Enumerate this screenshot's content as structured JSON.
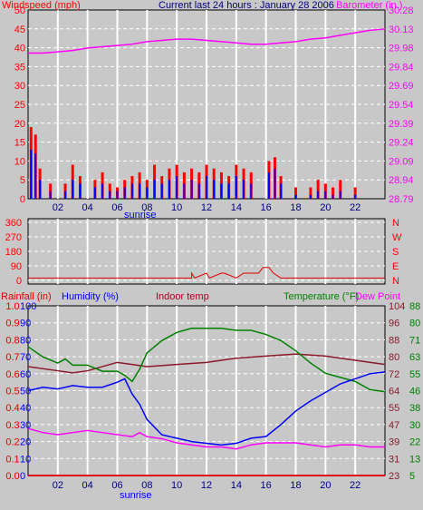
{
  "header": {
    "left_label": "Windspeed (mph)",
    "center_label": "Current last 24 hours : January 28 2006",
    "right_label": "Barometer (in.)"
  },
  "bottom_header": {
    "rainfall_label": "Rainfall (in)",
    "humidity_label": "Humidity (%)",
    "indoor_label": "Indoor temp",
    "temperature_label": "Temperature (°F)",
    "dewpoint_label": "Dew Point"
  },
  "x_axis": {
    "ticks": [
      "02",
      "04",
      "06",
      "08",
      "10",
      "12",
      "14",
      "16",
      "18",
      "20",
      "22"
    ],
    "sunrise_label": "sunrise"
  },
  "colors": {
    "wind_avg": "#0000ff",
    "wind_gust": "#ff0000",
    "barometer": "#ff00ff",
    "direction": "#e00000",
    "humidity": "#0000ff",
    "indoor": "#8b1a2a",
    "temperature": "#008000",
    "dewpoint": "#ff00ff",
    "rainfall": "#e00000"
  },
  "chart_data": [
    {
      "type": "bar",
      "title": "Current last 24 hours : January 28 2006",
      "ylabel": "Windspeed (mph)",
      "y2label": "Barometer (in.)",
      "ylim": [
        0,
        50
      ],
      "y2lim": [
        28.79,
        30.28
      ],
      "y_ticks": [
        0,
        5,
        10,
        15,
        20,
        25,
        30,
        35,
        40,
        45,
        50
      ],
      "y2_ticks": [
        "28.79",
        "28.94",
        "29.09",
        "29.24",
        "29.39",
        "29.54",
        "29.69",
        "29.84",
        "29.98",
        "30.13",
        "30.28"
      ],
      "grid": true,
      "xlim": [
        0,
        24
      ],
      "series": [
        {
          "name": "Barometer (in.)",
          "type": "line",
          "axis": "right",
          "x": [
            0,
            1,
            2,
            3,
            4,
            5,
            6,
            7,
            8,
            9,
            10,
            11,
            12,
            13,
            14,
            15,
            16,
            17,
            18,
            19,
            20,
            21,
            22,
            23,
            24
          ],
          "values": [
            29.94,
            29.94,
            29.95,
            29.96,
            29.98,
            29.99,
            30.0,
            30.01,
            30.03,
            30.04,
            30.05,
            30.05,
            30.04,
            30.03,
            30.02,
            30.01,
            30.01,
            30.02,
            30.03,
            30.05,
            30.06,
            30.08,
            30.1,
            30.12,
            30.13
          ]
        },
        {
          "name": "Wind gust",
          "type": "bar",
          "axis": "left",
          "x": [
            0.2,
            0.5,
            0.8,
            1.5,
            2.5,
            3.0,
            3.5,
            4.5,
            5.0,
            5.5,
            6.0,
            6.5,
            7.0,
            7.5,
            8.0,
            8.5,
            9.0,
            9.5,
            10.0,
            10.5,
            11.0,
            11.5,
            12.0,
            12.5,
            13.0,
            13.5,
            14.0,
            14.5,
            15.0,
            16.2,
            16.6,
            17.0,
            18.0,
            19.0,
            19.5,
            20.0,
            20.5,
            21.0,
            22.0
          ],
          "values": [
            19,
            17,
            8,
            4,
            4,
            9,
            6,
            5,
            7,
            4,
            3,
            5,
            6,
            7,
            5,
            9,
            6,
            8,
            9,
            7,
            8,
            7,
            9,
            8,
            7,
            6,
            9,
            8,
            7,
            10,
            11,
            6,
            3,
            3,
            5,
            4,
            3,
            5,
            3
          ]
        },
        {
          "name": "Wind average",
          "type": "bar",
          "axis": "left",
          "x": [
            0.2,
            0.5,
            0.8,
            1.5,
            2.5,
            3.0,
            3.5,
            4.5,
            5.0,
            5.5,
            6.0,
            6.5,
            7.0,
            7.5,
            8.0,
            8.5,
            9.0,
            9.5,
            10.0,
            10.5,
            11.0,
            11.5,
            12.0,
            12.5,
            13.0,
            13.5,
            14.0,
            14.5,
            15.0,
            16.2,
            16.6,
            17.0,
            18.0,
            19.0,
            19.5,
            20.0,
            20.5,
            21.0,
            22.0
          ],
          "values": [
            13,
            12,
            5,
            2,
            2,
            5,
            4,
            3,
            4,
            2,
            2,
            3,
            4,
            4,
            3,
            5,
            4,
            5,
            6,
            4,
            5,
            4,
            6,
            5,
            4,
            4,
            6,
            5,
            4,
            7,
            8,
            4,
            1,
            1,
            2,
            2,
            1,
            2,
            1
          ]
        }
      ]
    },
    {
      "type": "line",
      "ylabel_left_ticks": [
        0,
        90,
        180,
        270,
        360
      ],
      "ylabel_right_ticks": [
        "N",
        "E",
        "S",
        "W",
        "N"
      ],
      "ylim": [
        0,
        360
      ],
      "xlim": [
        0,
        24
      ],
      "grid": true,
      "series": [
        {
          "name": "Wind direction",
          "x": [
            0,
            11.0,
            11.0,
            11.2,
            12.0,
            12.2,
            13.0,
            13.2,
            14.0,
            14.5,
            15.0,
            15.5,
            15.8,
            16.2,
            16.5,
            17.0,
            24
          ],
          "values": [
            15,
            15,
            45,
            15,
            45,
            15,
            45,
            45,
            15,
            45,
            45,
            45,
            80,
            80,
            45,
            15,
            15
          ]
        }
      ]
    },
    {
      "type": "line",
      "xlim": [
        0,
        24
      ],
      "grid": true,
      "axes": {
        "rainfall": {
          "ticks": [
            "0.0",
            "0.1",
            "0.2",
            "0.3",
            "0.4",
            "0.5",
            "0.6",
            "0.7",
            "0.8",
            "0.9",
            "1.0"
          ],
          "ylim": [
            0,
            1.0
          ]
        },
        "humidity": {
          "ticks": [
            0,
            10,
            20,
            30,
            40,
            50,
            60,
            70,
            80,
            90,
            100
          ],
          "ylim": [
            0,
            100
          ]
        },
        "indoor": {
          "ticks": [
            23,
            31,
            39,
            47,
            55,
            64,
            72,
            80,
            88,
            96,
            104
          ],
          "ylim": [
            23,
            104
          ]
        },
        "temperature": {
          "ticks": [
            5,
            13,
            22,
            30,
            38,
            46,
            55,
            63,
            71,
            80,
            88
          ],
          "ylim": [
            5,
            88
          ]
        }
      },
      "series": [
        {
          "name": "Indoor temp",
          "axis": "indoor",
          "x": [
            0,
            2,
            3,
            4,
            6,
            7,
            8,
            10,
            12,
            14,
            16,
            18,
            20,
            22,
            24
          ],
          "values": [
            75,
            73,
            72,
            73,
            77,
            76,
            75,
            76,
            77,
            79,
            80,
            81,
            80,
            78,
            76
          ]
        },
        {
          "name": "Temperature (°F)",
          "axis": "temperature",
          "x": [
            0,
            1,
            2,
            2.5,
            3,
            4,
            5,
            6,
            6.5,
            7,
            7.5,
            8,
            9,
            10,
            11,
            12,
            13,
            14,
            15,
            15.5,
            16,
            17,
            18,
            19,
            20,
            21,
            22,
            23,
            24
          ],
          "values": [
            68,
            63,
            60,
            62,
            59,
            59,
            56,
            56,
            54,
            51,
            57,
            65,
            71,
            75,
            77,
            77,
            77,
            76,
            76,
            75,
            74,
            71,
            66,
            60,
            55,
            53,
            51,
            47,
            46
          ]
        },
        {
          "name": "Humidity (%)",
          "axis": "humidity",
          "x": [
            0,
            1,
            2,
            3,
            4,
            5,
            6,
            6.5,
            7,
            7.5,
            8,
            9,
            10,
            11,
            12,
            13,
            14,
            15,
            16,
            17,
            18,
            19,
            20,
            21,
            22,
            23,
            24
          ],
          "values": [
            50,
            52,
            51,
            53,
            52,
            52,
            55,
            57,
            48,
            42,
            33,
            24,
            22,
            20,
            19,
            18,
            19,
            22,
            23,
            30,
            38,
            44,
            49,
            54,
            57,
            60,
            61
          ]
        },
        {
          "name": "Dew Point",
          "axis": "temperature",
          "x": [
            0,
            1,
            2,
            3,
            4,
            5,
            6,
            7,
            7.5,
            8,
            9,
            10,
            11,
            12,
            13,
            14,
            15,
            16,
            17,
            18,
            19,
            20,
            21,
            22,
            23,
            24
          ],
          "values": [
            28,
            26,
            25,
            26,
            27,
            26,
            25,
            24,
            26,
            24,
            23,
            21,
            20,
            19,
            19,
            18,
            20,
            21,
            21,
            21,
            20,
            19,
            20,
            20,
            19,
            19
          ]
        },
        {
          "name": "Rainfall (in)",
          "axis": "rainfall",
          "x": [
            0,
            24
          ],
          "values": [
            0,
            0
          ]
        }
      ]
    }
  ]
}
